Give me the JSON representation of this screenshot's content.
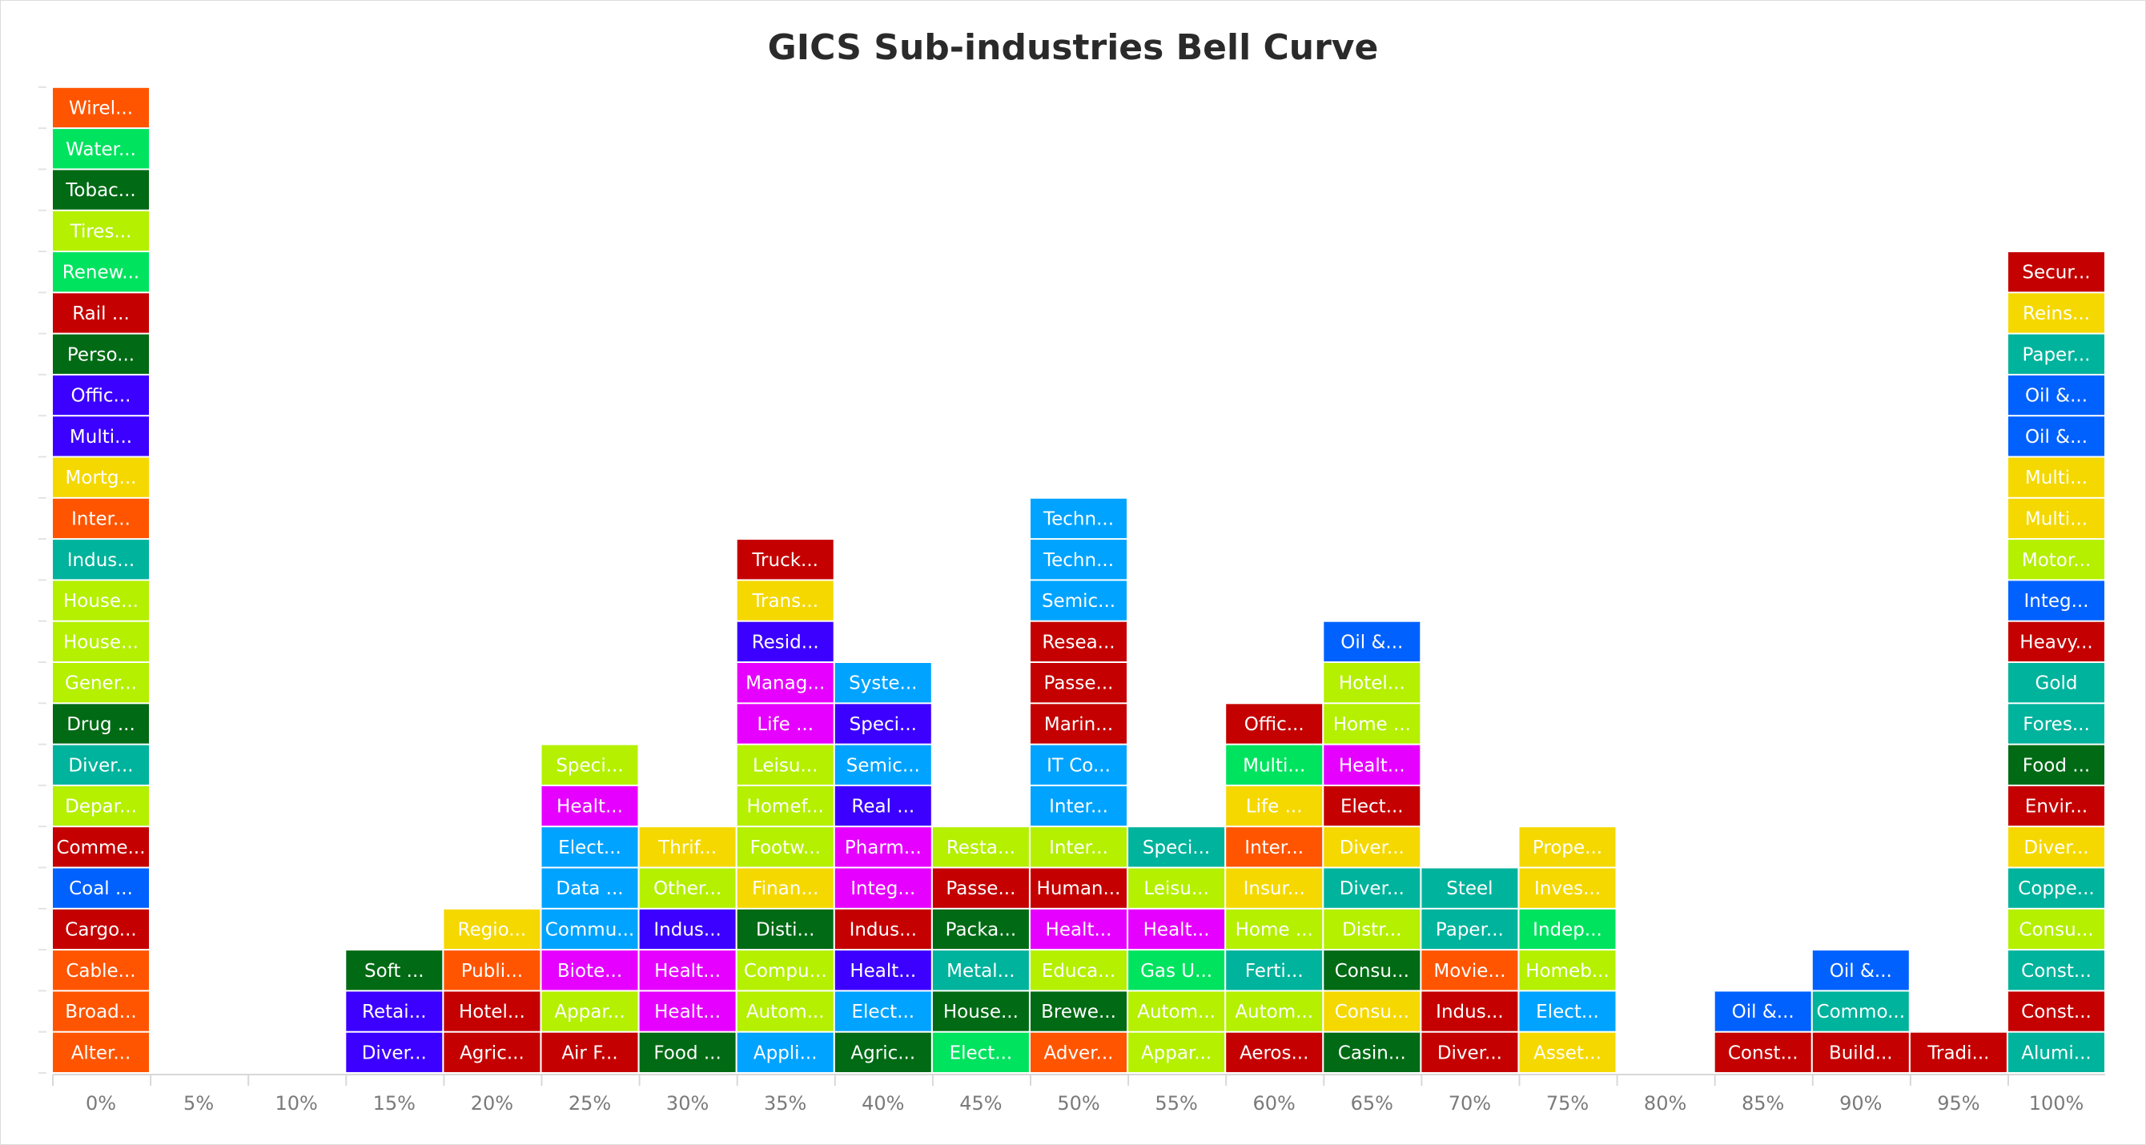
{
  "chart_data": {
    "type": "bar",
    "title": "GICS Sub-industries Bell Curve",
    "xlabel": "",
    "ylabel": "",
    "categories": [
      "0%",
      "5%",
      "10%",
      "15%",
      "20%",
      "25%",
      "30%",
      "35%",
      "40%",
      "45%",
      "50%",
      "55%",
      "60%",
      "65%",
      "70%",
      "75%",
      "80%",
      "85%",
      "90%",
      "95%",
      "100%"
    ],
    "values": [
      24,
      0,
      0,
      3,
      4,
      8,
      6,
      13,
      10,
      6,
      14,
      6,
      9,
      11,
      5,
      6,
      0,
      2,
      3,
      1,
      20
    ],
    "ylim": [
      0,
      24
    ],
    "grid": false,
    "legend": "none",
    "colors": {
      "R": "#c40000",
      "O": "#ff5500",
      "Y": "#f5d800",
      "L": "#b4f000",
      "G": "#00e35f",
      "D": "#006a14",
      "T": "#00b39c",
      "C": "#00a3ff",
      "B": "#0061ff",
      "P": "#3b00ff",
      "M": "#e600ff"
    },
    "stacks": [
      [
        {
          "label": "Alter...",
          "color": "O"
        },
        {
          "label": "Broad...",
          "color": "O"
        },
        {
          "label": "Cable...",
          "color": "O"
        },
        {
          "label": "Cargo...",
          "color": "R"
        },
        {
          "label": "Coal ...",
          "color": "B"
        },
        {
          "label": "Comme...",
          "color": "R"
        },
        {
          "label": "Depar...",
          "color": "L"
        },
        {
          "label": "Diver...",
          "color": "T"
        },
        {
          "label": "Drug ...",
          "color": "D"
        },
        {
          "label": "Gener...",
          "color": "L"
        },
        {
          "label": "House...",
          "color": "L"
        },
        {
          "label": "House...",
          "color": "L"
        },
        {
          "label": "Indus...",
          "color": "T"
        },
        {
          "label": "Inter...",
          "color": "O"
        },
        {
          "label": "Mortg...",
          "color": "Y"
        },
        {
          "label": "Multi...",
          "color": "P"
        },
        {
          "label": "Offic...",
          "color": "P"
        },
        {
          "label": "Perso...",
          "color": "D"
        },
        {
          "label": "Rail ...",
          "color": "R"
        },
        {
          "label": "Renew...",
          "color": "G"
        },
        {
          "label": "Tires...",
          "color": "L"
        },
        {
          "label": "Tobac...",
          "color": "D"
        },
        {
          "label": "Water...",
          "color": "G"
        },
        {
          "label": "Wirel...",
          "color": "O"
        }
      ],
      [],
      [],
      [
        {
          "label": "Diver...",
          "color": "P"
        },
        {
          "label": "Retai...",
          "color": "P"
        },
        {
          "label": "Soft ...",
          "color": "D"
        }
      ],
      [
        {
          "label": "Agric...",
          "color": "R"
        },
        {
          "label": "Hotel...",
          "color": "R"
        },
        {
          "label": "Publi...",
          "color": "O"
        },
        {
          "label": "Regio...",
          "color": "Y"
        }
      ],
      [
        {
          "label": "Air F...",
          "color": "R"
        },
        {
          "label": "Appar...",
          "color": "L"
        },
        {
          "label": "Biote...",
          "color": "M"
        },
        {
          "label": "Commu...",
          "color": "C"
        },
        {
          "label": "Data ...",
          "color": "C"
        },
        {
          "label": "Elect...",
          "color": "C"
        },
        {
          "label": "Healt...",
          "color": "M"
        },
        {
          "label": "Speci...",
          "color": "L"
        }
      ],
      [
        {
          "label": "Food ...",
          "color": "D"
        },
        {
          "label": "Healt...",
          "color": "M"
        },
        {
          "label": "Healt...",
          "color": "M"
        },
        {
          "label": "Indus...",
          "color": "P"
        },
        {
          "label": "Other...",
          "color": "L"
        },
        {
          "label": "Thrif...",
          "color": "Y"
        }
      ],
      [
        {
          "label": "Appli...",
          "color": "C"
        },
        {
          "label": "Autom...",
          "color": "L"
        },
        {
          "label": "Compu...",
          "color": "L"
        },
        {
          "label": "Disti...",
          "color": "D"
        },
        {
          "label": "Finan...",
          "color": "Y"
        },
        {
          "label": "Footw...",
          "color": "L"
        },
        {
          "label": "Homef...",
          "color": "L"
        },
        {
          "label": "Leisu...",
          "color": "L"
        },
        {
          "label": "Life ...",
          "color": "M"
        },
        {
          "label": "Manag...",
          "color": "M"
        },
        {
          "label": "Resid...",
          "color": "P"
        },
        {
          "label": "Trans...",
          "color": "Y"
        },
        {
          "label": "Truck...",
          "color": "R"
        }
      ],
      [
        {
          "label": "Agric...",
          "color": "D"
        },
        {
          "label": "Elect...",
          "color": "C"
        },
        {
          "label": "Healt...",
          "color": "P"
        },
        {
          "label": "Indus...",
          "color": "R"
        },
        {
          "label": "Integ...",
          "color": "M"
        },
        {
          "label": "Pharm...",
          "color": "M"
        },
        {
          "label": "Real ...",
          "color": "P"
        },
        {
          "label": "Semic...",
          "color": "C"
        },
        {
          "label": "Speci...",
          "color": "P"
        },
        {
          "label": "Syste...",
          "color": "C"
        }
      ],
      [
        {
          "label": "Elect...",
          "color": "G"
        },
        {
          "label": "House...",
          "color": "D"
        },
        {
          "label": "Metal...",
          "color": "T"
        },
        {
          "label": "Packa...",
          "color": "D"
        },
        {
          "label": "Passe...",
          "color": "R"
        },
        {
          "label": "Resta...",
          "color": "L"
        }
      ],
      [
        {
          "label": "Adver...",
          "color": "O"
        },
        {
          "label": "Brewe...",
          "color": "D"
        },
        {
          "label": "Educa...",
          "color": "L"
        },
        {
          "label": "Healt...",
          "color": "M"
        },
        {
          "label": "Human...",
          "color": "R"
        },
        {
          "label": "Inter...",
          "color": "L"
        },
        {
          "label": "Inter...",
          "color": "C"
        },
        {
          "label": "IT Co...",
          "color": "C"
        },
        {
          "label": "Marin...",
          "color": "R"
        },
        {
          "label": "Passe...",
          "color": "R"
        },
        {
          "label": "Resea...",
          "color": "R"
        },
        {
          "label": "Semic...",
          "color": "C"
        },
        {
          "label": "Techn...",
          "color": "C"
        },
        {
          "label": "Techn...",
          "color": "C"
        }
      ],
      [
        {
          "label": "Appar...",
          "color": "L"
        },
        {
          "label": "Autom...",
          "color": "L"
        },
        {
          "label": "Gas U...",
          "color": "G"
        },
        {
          "label": "Healt...",
          "color": "M"
        },
        {
          "label": "Leisu...",
          "color": "L"
        },
        {
          "label": "Speci...",
          "color": "T"
        }
      ],
      [
        {
          "label": "Aeros...",
          "color": "R"
        },
        {
          "label": "Autom...",
          "color": "L"
        },
        {
          "label": "Ferti...",
          "color": "T"
        },
        {
          "label": "Home ...",
          "color": "L"
        },
        {
          "label": "Insur...",
          "color": "Y"
        },
        {
          "label": "Inter...",
          "color": "O"
        },
        {
          "label": "Life ...",
          "color": "Y"
        },
        {
          "label": "Multi...",
          "color": "G"
        },
        {
          "label": "Offic...",
          "color": "R"
        }
      ],
      [
        {
          "label": "Casin...",
          "color": "D"
        },
        {
          "label": "Consu...",
          "color": "Y"
        },
        {
          "label": "Consu...",
          "color": "D"
        },
        {
          "label": "Distr...",
          "color": "L"
        },
        {
          "label": "Diver...",
          "color": "T"
        },
        {
          "label": "Diver...",
          "color": "Y"
        },
        {
          "label": "Elect...",
          "color": "R"
        },
        {
          "label": "Healt...",
          "color": "M"
        },
        {
          "label": "Home ...",
          "color": "L"
        },
        {
          "label": "Hotel...",
          "color": "L"
        },
        {
          "label": "Oil &...",
          "color": "B"
        }
      ],
      [
        {
          "label": "Diver...",
          "color": "R"
        },
        {
          "label": "Indus...",
          "color": "R"
        },
        {
          "label": "Movie...",
          "color": "O"
        },
        {
          "label": "Paper...",
          "color": "T"
        },
        {
          "label": "Steel",
          "color": "T"
        }
      ],
      [
        {
          "label": "Asset...",
          "color": "Y"
        },
        {
          "label": "Elect...",
          "color": "C"
        },
        {
          "label": "Homeb...",
          "color": "L"
        },
        {
          "label": "Indep...",
          "color": "G"
        },
        {
          "label": "Inves...",
          "color": "Y"
        },
        {
          "label": "Prope...",
          "color": "Y"
        }
      ],
      [],
      [
        {
          "label": "Const...",
          "color": "R"
        },
        {
          "label": "Oil &...",
          "color": "B"
        }
      ],
      [
        {
          "label": "Build...",
          "color": "R"
        },
        {
          "label": "Commo...",
          "color": "T"
        },
        {
          "label": "Oil &...",
          "color": "B"
        }
      ],
      [
        {
          "label": "Tradi...",
          "color": "R"
        }
      ],
      [
        {
          "label": "Alumi...",
          "color": "T"
        },
        {
          "label": "Const...",
          "color": "R"
        },
        {
          "label": "Const...",
          "color": "T"
        },
        {
          "label": "Consu...",
          "color": "L"
        },
        {
          "label": "Coppe...",
          "color": "T"
        },
        {
          "label": "Diver...",
          "color": "Y"
        },
        {
          "label": "Envir...",
          "color": "R"
        },
        {
          "label": "Food ...",
          "color": "D"
        },
        {
          "label": "Fores...",
          "color": "T"
        },
        {
          "label": "Gold",
          "color": "T"
        },
        {
          "label": "Heavy...",
          "color": "R"
        },
        {
          "label": "Integ...",
          "color": "B"
        },
        {
          "label": "Motor...",
          "color": "L"
        },
        {
          "label": "Multi...",
          "color": "Y"
        },
        {
          "label": "Multi...",
          "color": "Y"
        },
        {
          "label": "Oil &...",
          "color": "B"
        },
        {
          "label": "Oil &...",
          "color": "B"
        },
        {
          "label": "Paper...",
          "color": "T"
        },
        {
          "label": "Reins...",
          "color": "Y"
        },
        {
          "label": "Secur...",
          "color": "R"
        }
      ]
    ]
  }
}
